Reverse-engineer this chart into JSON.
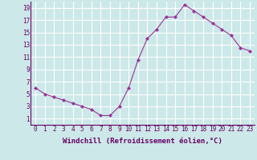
{
  "x": [
    0,
    1,
    2,
    3,
    4,
    5,
    6,
    7,
    8,
    9,
    10,
    11,
    12,
    13,
    14,
    15,
    16,
    17,
    18,
    19,
    20,
    21,
    22,
    23
  ],
  "y": [
    6,
    5,
    4.5,
    4,
    3.5,
    3,
    2.5,
    1.5,
    1.5,
    3,
    6,
    10.5,
    14,
    15.5,
    17.5,
    17.5,
    19.5,
    18.5,
    17.5,
    16.5,
    15.5,
    14.5,
    12.5,
    12
  ],
  "line_color": "#993399",
  "marker": "D",
  "marker_size": 2,
  "bg_color": "#cce8e8",
  "grid_color": "#ffffff",
  "xlabel": "Windchill (Refroidissement éolien,°C)",
  "xlabel_fontsize": 6.5,
  "tick_fontsize": 5.5,
  "xlim": [
    -0.5,
    23.5
  ],
  "ylim": [
    0,
    20
  ],
  "yticks": [
    1,
    3,
    5,
    7,
    9,
    11,
    13,
    15,
    17,
    19
  ],
  "xticks": [
    0,
    1,
    2,
    3,
    4,
    5,
    6,
    7,
    8,
    9,
    10,
    11,
    12,
    13,
    14,
    15,
    16,
    17,
    18,
    19,
    20,
    21,
    22,
    23
  ],
  "xtick_labels": [
    "0",
    "1",
    "2",
    "3",
    "4",
    "5",
    "6",
    "7",
    "8",
    "9",
    "10",
    "11",
    "12",
    "13",
    "14",
    "15",
    "16",
    "17",
    "18",
    "19",
    "20",
    "21",
    "22",
    "23"
  ]
}
